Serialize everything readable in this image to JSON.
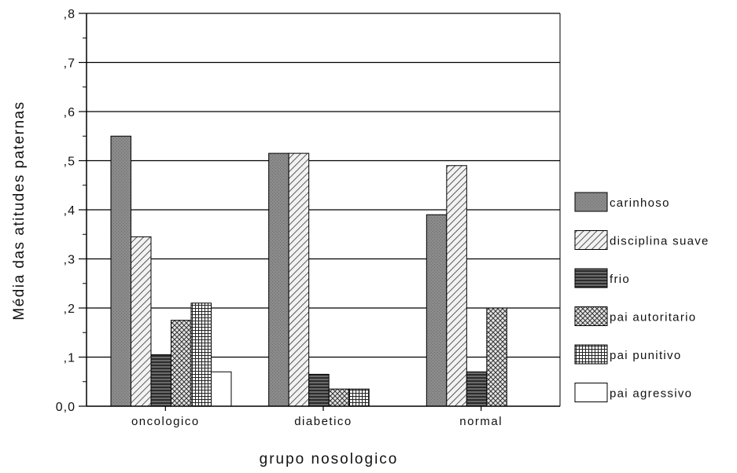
{
  "chart_data": {
    "type": "bar",
    "xlabel": "grupo nosologico",
    "ylabel": "Média das atitudes paternas",
    "ylim": [
      0,
      0.8
    ],
    "yticks": [
      {
        "value": 0.0,
        "label": "0,0"
      },
      {
        "value": 0.1,
        "label": ",1"
      },
      {
        "value": 0.2,
        "label": ",2"
      },
      {
        "value": 0.3,
        "label": ",3"
      },
      {
        "value": 0.4,
        "label": ",4"
      },
      {
        "value": 0.5,
        "label": ",5"
      },
      {
        "value": 0.6,
        "label": ",6"
      },
      {
        "value": 0.7,
        "label": ",7"
      },
      {
        "value": 0.8,
        "label": ",8"
      }
    ],
    "categories": [
      "oncologico",
      "diabetico",
      "normal"
    ],
    "grid": true,
    "legend_position": "right",
    "series": [
      {
        "name": "carinhoso",
        "values": [
          0.55,
          0.515,
          0.39
        ]
      },
      {
        "name": "disciplina suave",
        "values": [
          0.345,
          0.515,
          0.49
        ]
      },
      {
        "name": "frio",
        "values": [
          0.105,
          0.065,
          0.07
        ]
      },
      {
        "name": "pai autoritario",
        "values": [
          0.175,
          0.035,
          0.2
        ]
      },
      {
        "name": "pai punitivo",
        "values": [
          0.21,
          0.035,
          null
        ]
      },
      {
        "name": "pai agressivo",
        "values": [
          0.07,
          null,
          null
        ]
      }
    ]
  }
}
